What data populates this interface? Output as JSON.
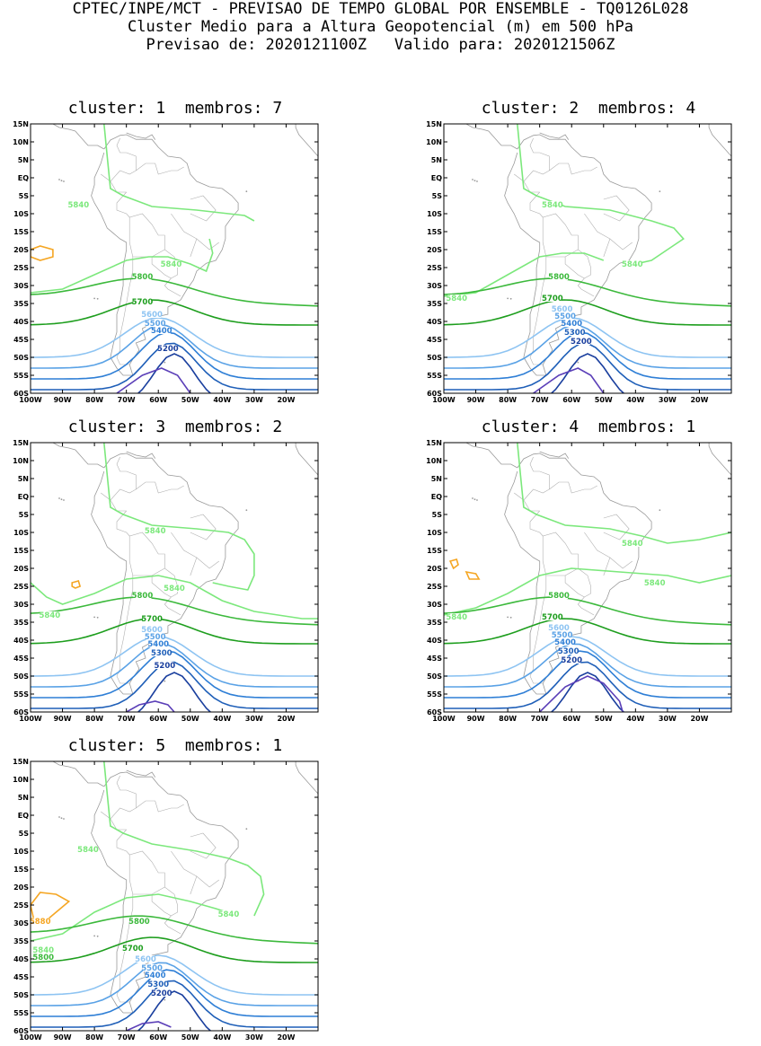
{
  "header": {
    "line1": "CPTEC/INPE/MCT - PREVISAO DE TEMPO GLOBAL POR ENSEMBLE - TQ0126L028",
    "line2": "Cluster Medio para a Altura Geopotencial (m) em 500 hPa",
    "line3": "Previsao de: 2020121100Z   Valido para: 2020121506Z"
  },
  "axes": {
    "lat_labels": [
      "15N",
      "10N",
      "5N",
      "EQ",
      "5S",
      "10S",
      "15S",
      "20S",
      "25S",
      "30S",
      "35S",
      "40S",
      "45S",
      "50S",
      "55S",
      "60S"
    ],
    "lon_labels": [
      "100W",
      "90W",
      "80W",
      "70W",
      "60W",
      "50W",
      "40W",
      "30W",
      "20W"
    ]
  },
  "contour_colors": {
    "5880": "#f5a623",
    "5840": "#7ce87c",
    "5800": "#3cb93c",
    "5700": "#1e9e1e",
    "5600": "#8ec4f2",
    "5500": "#5aa2e6",
    "5400": "#2f7fd6",
    "5300": "#1f5fb8",
    "5200": "#1a3f9e",
    "5100": "#5b3fb8"
  },
  "panels": [
    {
      "title": "cluster: 1  membros: 7",
      "labels": {
        "c5840a": "5840",
        "c5840b": "5840",
        "c5800": "5800",
        "c5700": "5700",
        "c5600": "5600",
        "c5500": "5500",
        "c5400": "5400",
        "c5200": "5200"
      }
    },
    {
      "title": "cluster: 2  membros: 4",
      "labels": {
        "c5840a": "5840",
        "c5840b": "5840",
        "c5840c": "5840",
        "c5800": "5800",
        "c5700": "5700",
        "c5600": "5600",
        "c5500": "5500",
        "c5400": "5400",
        "c5300": "5300",
        "c5200": "5200"
      }
    },
    {
      "title": "cluster: 3  membros: 2",
      "labels": {
        "c5840a": "5840",
        "c5840b": "5840",
        "c5840c": "5840",
        "c5800": "5800",
        "c5700": "5700",
        "c5600": "5600",
        "c5500": "5500",
        "c5400": "5400",
        "c5300": "5300",
        "c5200": "5200"
      }
    },
    {
      "title": "cluster: 4  membros: 1",
      "labels": {
        "c5840a": "5840",
        "c5840b": "5840",
        "c5840c": "5840",
        "c5800": "5800",
        "c5700": "5700",
        "c5600": "5600",
        "c5500": "5500",
        "c5400": "5400",
        "c5300": "5300",
        "c5200": "5200"
      }
    },
    {
      "title": "cluster: 5  membros: 1",
      "labels": {
        "c5880": "5880",
        "c5840a": "5840",
        "c5840b": "5840",
        "c5840c": "5840",
        "c5800a": "5800",
        "c5800b": "5800",
        "c5700": "5700",
        "c5600": "5600",
        "c5500": "5500",
        "c5400": "5400",
        "c5300": "5300",
        "c5200": "5200"
      }
    }
  ]
}
